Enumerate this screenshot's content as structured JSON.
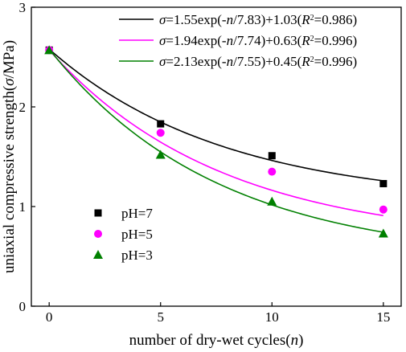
{
  "chart_data": {
    "type": "scatter",
    "xlabel_parts": [
      "number of dry-wet cycles(",
      "n",
      ")"
    ],
    "ylabel_parts": [
      "uniaxial compressive strength(",
      "σ",
      "/MPa)"
    ],
    "xlim": [
      -0.8,
      15.8
    ],
    "ylim": [
      0,
      3
    ],
    "xticks": [
      0,
      5,
      10,
      15
    ],
    "yticks": [
      0,
      1,
      2,
      3
    ],
    "grid": false,
    "legend_position": "lower-left",
    "series": [
      {
        "name": "pH=7",
        "marker": "square",
        "color": "#000000",
        "x": [
          0,
          5,
          10,
          15
        ],
        "y": [
          2.57,
          1.83,
          1.51,
          1.23
        ],
        "fit": {
          "a": 1.55,
          "b": 7.83,
          "c": 1.03,
          "r2": "0.986"
        },
        "equation": [
          "σ",
          "=1.55exp(-",
          "n",
          "/7.83)+1.03(",
          "R",
          "2",
          "=0.986)"
        ]
      },
      {
        "name": "pH=5",
        "marker": "circle",
        "color": "#ff00ff",
        "x": [
          0,
          5,
          10,
          15
        ],
        "y": [
          2.57,
          1.74,
          1.35,
          0.97
        ],
        "fit": {
          "a": 1.94,
          "b": 7.74,
          "c": 0.63,
          "r2": "0.996"
        },
        "equation": [
          "σ",
          "=1.94exp(-",
          "n",
          "/7.74)+0.63(",
          "R",
          "2",
          "=0.996)"
        ]
      },
      {
        "name": "pH=3",
        "marker": "triangle",
        "color": "#008000",
        "x": [
          0,
          5,
          10,
          15
        ],
        "y": [
          2.57,
          1.52,
          1.05,
          0.73
        ],
        "fit": {
          "a": 2.13,
          "b": 7.55,
          "c": 0.45,
          "r2": "0.996"
        },
        "equation": [
          "σ",
          "=2.13exp(-",
          "n",
          "/7.55)+0.45(",
          "R",
          "2",
          "=0.996)"
        ]
      }
    ]
  }
}
